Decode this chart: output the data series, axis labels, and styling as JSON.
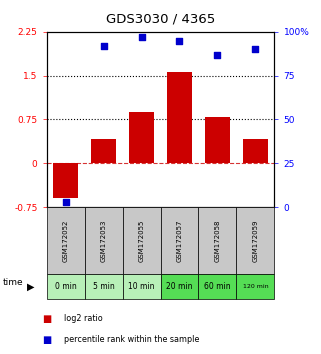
{
  "title": "GDS3030 / 4365",
  "samples": [
    "GSM172052",
    "GSM172053",
    "GSM172055",
    "GSM172057",
    "GSM172058",
    "GSM172059"
  ],
  "time_labels": [
    "0 min",
    "5 min",
    "10 min",
    "20 min",
    "60 min",
    "120 min"
  ],
  "log2_ratios": [
    -0.6,
    0.42,
    0.87,
    1.57,
    0.8,
    0.42
  ],
  "percentile_ranks": [
    3,
    92,
    97,
    95,
    87,
    90
  ],
  "bar_color": "#cc0000",
  "dot_color": "#0000cc",
  "ylim_left": [
    -0.75,
    2.25
  ],
  "ylim_right": [
    0,
    100
  ],
  "yticks_left": [
    -0.75,
    0,
    0.75,
    1.5,
    2.25
  ],
  "yticks_right": [
    0,
    25,
    50,
    75,
    100
  ],
  "ytick_labels_left": [
    "-0.75",
    "0",
    "0.75",
    "1.5",
    "2.25"
  ],
  "ytick_labels_right": [
    "0",
    "25",
    "50",
    "75",
    "100%"
  ],
  "hlines_dotted": [
    0.75,
    1.5
  ],
  "hline_dashed": 0,
  "bar_width": 0.65,
  "gray_box": "#c8c8c8",
  "time_colors": [
    "#b8f0b8",
    "#b8f0b8",
    "#b8f0b8",
    "#55dd55",
    "#55dd55",
    "#55dd55"
  ],
  "legend_items": [
    {
      "color": "#cc0000",
      "label": "log2 ratio"
    },
    {
      "color": "#0000cc",
      "label": "percentile rank within the sample"
    }
  ]
}
